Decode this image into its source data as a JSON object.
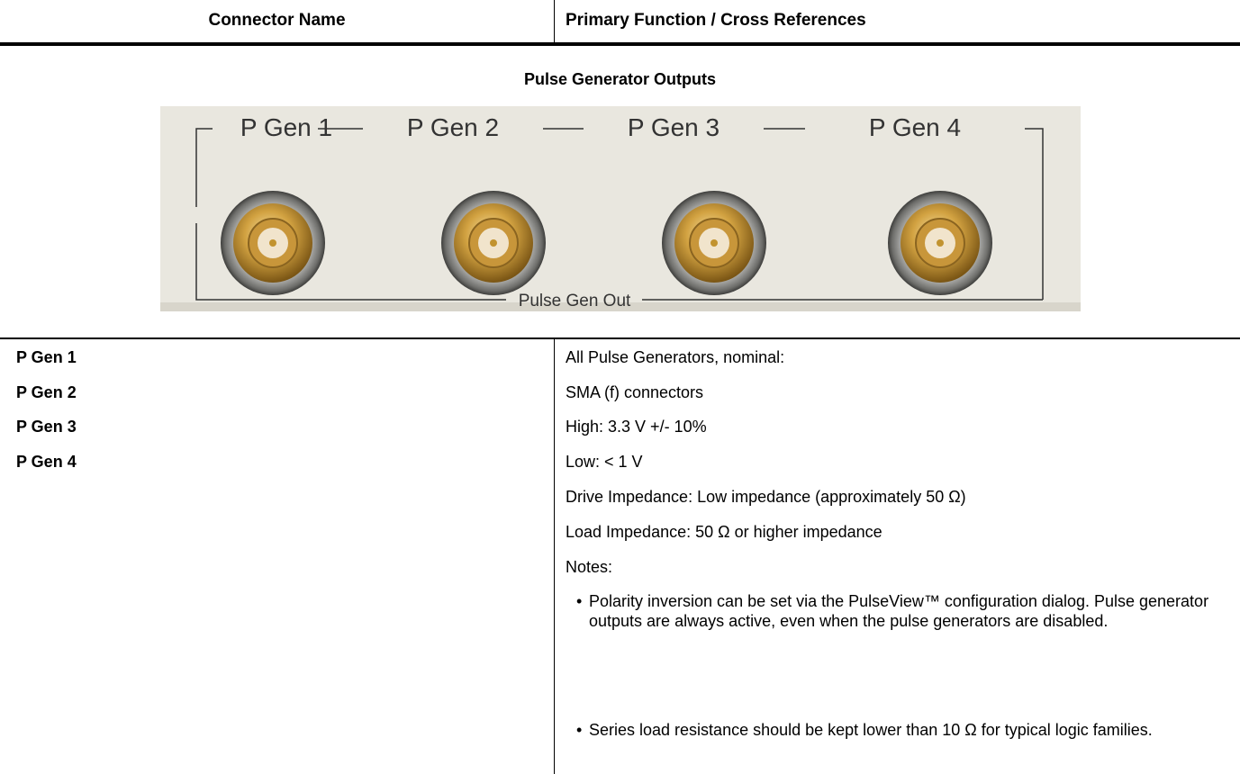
{
  "header": {
    "columns": [
      "Connector Name",
      "Primary Function / Cross References"
    ]
  },
  "section_title": "Pulse Generator Outputs",
  "image": {
    "labels": [
      "P Gen 1",
      "P Gen 2",
      "P Gen 3",
      "P Gen 4"
    ],
    "caption": "Pulse Gen Out"
  },
  "rows": {
    "names": [
      "P Gen 1",
      "P Gen 2",
      "P Gen 3",
      "P Gen 4"
    ],
    "details": [
      "All Pulse Generators, nominal:",
      "SMA (f) connectors",
      "High: 3.3 V +/- 10%",
      "Low: < 1 V",
      "Drive Impedance: Low impedance (approximately 50 Ω)",
      "Load Impedance: 50 Ω or higher impedance",
      "Notes:"
    ],
    "notes": [
      "Polarity inversion can be set via the PulseView™ configuration dialog. Pulse generator outputs are always active, even when the pulse generators are disabled.",
      "Series load resistance should be kept lower than 10 Ω for typical logic families."
    ]
  }
}
